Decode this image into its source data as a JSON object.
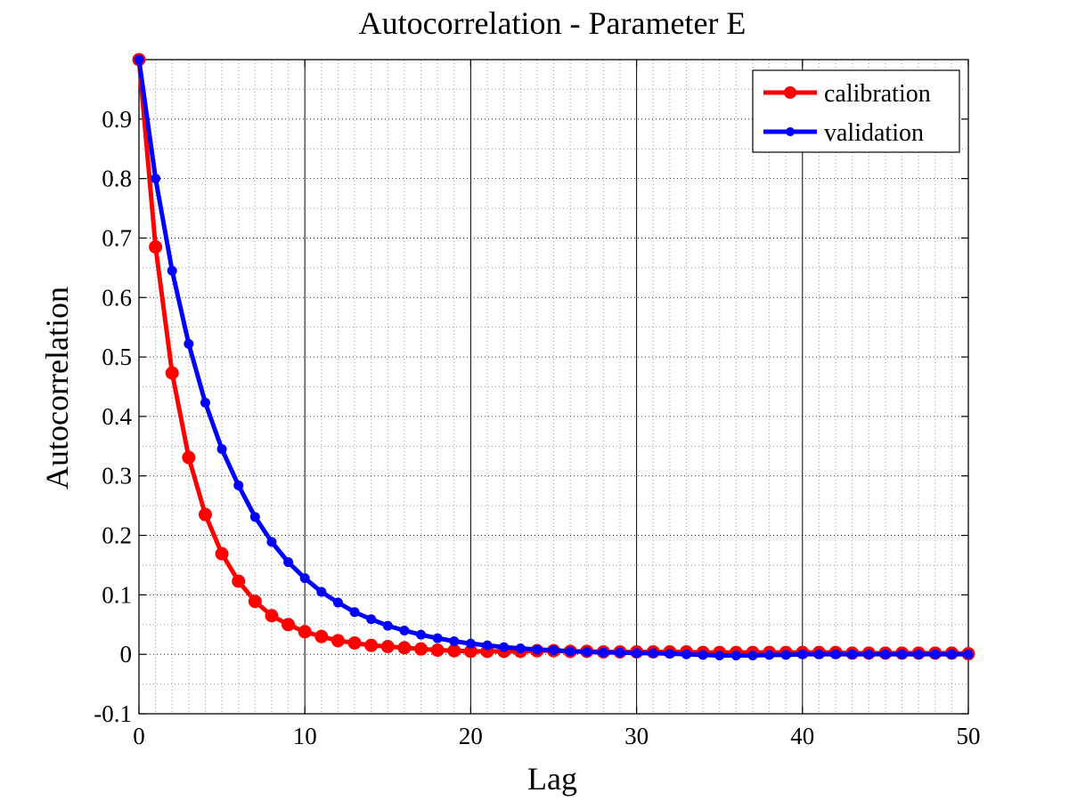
{
  "chart_data": {
    "type": "line",
    "title": "Autocorrelation - Parameter E",
    "xlabel": "Lag",
    "ylabel": "Autocorrelation",
    "xlim": [
      0,
      50
    ],
    "ylim": [
      -0.1,
      1.0
    ],
    "x_ticks": [
      0,
      10,
      20,
      30,
      40,
      50
    ],
    "y_ticks": [
      -0.1,
      0,
      0.1,
      0.2,
      0.3,
      0.4,
      0.5,
      0.6,
      0.7,
      0.8,
      0.9
    ],
    "x_tick_labels": [
      "0",
      "10",
      "20",
      "30",
      "40",
      "50"
    ],
    "y_tick_labels": [
      "-0.1",
      "0",
      "0.1",
      "0.2",
      "0.3",
      "0.4",
      "0.5",
      "0.6",
      "0.7",
      "0.8",
      "0.9"
    ],
    "grid": true,
    "minor_grid": true,
    "legend_position": "top-right",
    "x": [
      0,
      1,
      2,
      3,
      4,
      5,
      6,
      7,
      8,
      9,
      10,
      11,
      12,
      13,
      14,
      15,
      16,
      17,
      18,
      19,
      20,
      21,
      22,
      23,
      24,
      25,
      26,
      27,
      28,
      29,
      30,
      31,
      32,
      33,
      34,
      35,
      36,
      37,
      38,
      39,
      40,
      41,
      42,
      43,
      44,
      45,
      46,
      47,
      48,
      49,
      50
    ],
    "series": [
      {
        "name": "calibration",
        "color": "#ff0000",
        "marker_size": 7,
        "values": [
          1.0,
          0.685,
          0.473,
          0.331,
          0.235,
          0.169,
          0.123,
          0.089,
          0.065,
          0.05,
          0.038,
          0.03,
          0.023,
          0.019,
          0.015,
          0.013,
          0.011,
          0.009,
          0.007,
          0.006,
          0.005,
          0.005,
          0.005,
          0.005,
          0.006,
          0.006,
          0.005,
          0.005,
          0.004,
          0.004,
          0.004,
          0.004,
          0.004,
          0.004,
          0.003,
          0.003,
          0.003,
          0.003,
          0.003,
          0.003,
          0.003,
          0.003,
          0.003,
          0.002,
          0.002,
          0.002,
          0.002,
          0.002,
          0.002,
          0.002,
          0.001
        ]
      },
      {
        "name": "validation",
        "color": "#0000ff",
        "marker_size": 5,
        "values": [
          1.0,
          0.8,
          0.645,
          0.522,
          0.423,
          0.345,
          0.284,
          0.231,
          0.189,
          0.155,
          0.128,
          0.105,
          0.087,
          0.071,
          0.059,
          0.048,
          0.04,
          0.033,
          0.027,
          0.022,
          0.018,
          0.015,
          0.012,
          0.01,
          0.008,
          0.007,
          0.005,
          0.004,
          0.003,
          0.003,
          0.002,
          0.002,
          0.001,
          0.0,
          -0.001,
          -0.002,
          -0.002,
          -0.002,
          -0.001,
          -0.001,
          0.0,
          0.0,
          0.0,
          0.0,
          0.0,
          0.0,
          0.0,
          0.0,
          0.0,
          0.0,
          0.0
        ]
      }
    ]
  }
}
